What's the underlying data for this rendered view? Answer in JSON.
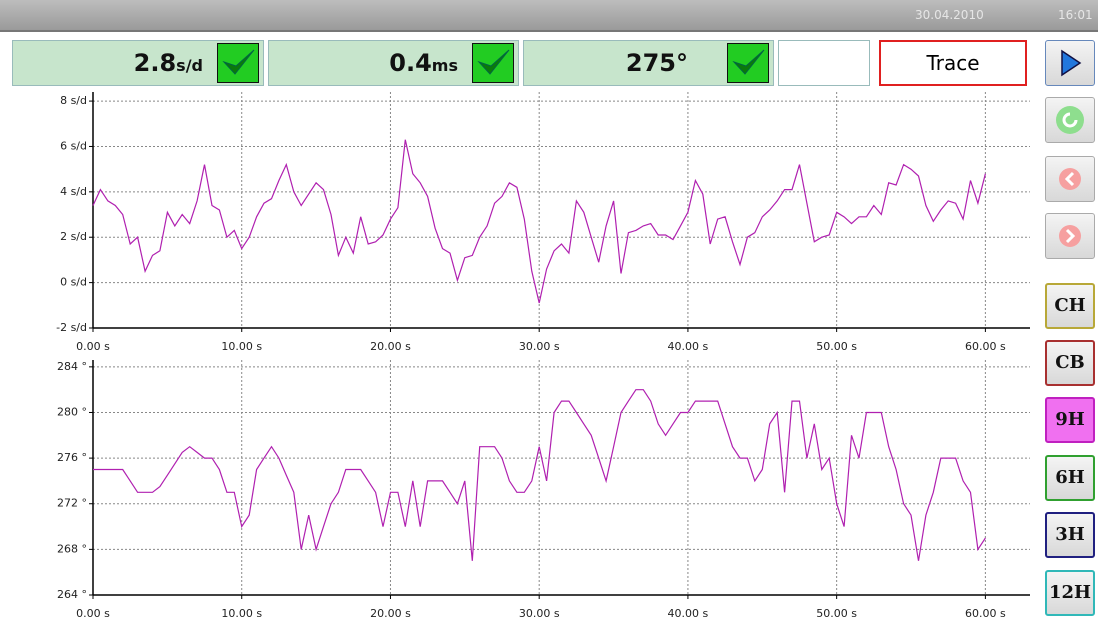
{
  "header": {
    "date": "30.04.2010",
    "time": "16:01"
  },
  "readouts": [
    {
      "value": "2.8",
      "unit": "s/d"
    },
    {
      "value": "0.4",
      "unit": "ms"
    },
    {
      "value": "275°"
    }
  ],
  "trace_button": "Trace",
  "side_buttons": [
    "CH",
    "CB",
    "9H",
    "6H",
    "3H",
    "12H"
  ],
  "chart_data": [
    {
      "type": "line",
      "color": "#b020b0",
      "grid": true,
      "xlim": [
        0,
        63
      ],
      "ylim": [
        -2,
        8.4
      ],
      "xticks": [
        {
          "value": 0,
          "label": "0.00 s"
        },
        {
          "value": 10,
          "label": "10.00 s"
        },
        {
          "value": 20,
          "label": "20.00 s"
        },
        {
          "value": 30,
          "label": "30.00 s"
        },
        {
          "value": 40,
          "label": "40.00 s"
        },
        {
          "value": 50,
          "label": "50.00 s"
        },
        {
          "value": 60,
          "label": "60.00 s"
        }
      ],
      "yticks": [
        {
          "value": -2,
          "label": "-2 s/d"
        },
        {
          "value": 0,
          "label": "0 s/d"
        },
        {
          "value": 2,
          "label": "2 s/d"
        },
        {
          "value": 4,
          "label": "4 s/d"
        },
        {
          "value": 6,
          "label": "6 s/d"
        },
        {
          "value": 8,
          "label": "8 s/d"
        }
      ],
      "x": [
        0,
        0.5,
        1,
        1.5,
        2,
        2.5,
        3,
        3.5,
        4,
        4.5,
        5,
        5.5,
        6,
        6.5,
        7,
        7.5,
        8,
        8.5,
        9,
        9.5,
        10,
        10.5,
        11,
        11.5,
        12,
        12.5,
        13,
        13.5,
        14,
        14.5,
        15,
        15.5,
        16,
        16.5,
        17,
        17.5,
        18,
        18.5,
        19,
        19.5,
        20,
        20.5,
        21,
        21.5,
        22,
        22.5,
        23,
        23.5,
        24,
        24.5,
        25,
        25.5,
        26,
        26.5,
        27,
        27.5,
        28,
        28.5,
        29,
        29.5,
        30,
        30.5,
        31,
        31.5,
        32,
        32.5,
        33,
        33.5,
        34,
        34.5,
        35,
        35.5,
        36,
        36.5,
        37,
        37.5,
        38,
        38.5,
        39,
        39.5,
        40,
        40.5,
        41,
        41.5,
        42,
        42.5,
        43,
        43.5,
        44,
        44.5,
        45,
        45.5,
        46,
        46.5,
        47,
        47.5,
        48,
        48.5,
        49,
        49.5,
        50,
        50.5,
        51,
        51.5,
        52,
        52.5,
        53,
        53.5,
        54,
        54.5,
        55,
        55.5,
        56,
        56.5,
        57,
        57.5,
        58,
        58.5,
        59,
        59.5,
        60
      ],
      "values": [
        3.4,
        4.1,
        3.6,
        3.4,
        3.0,
        1.7,
        2.0,
        0.5,
        1.2,
        1.4,
        3.1,
        2.5,
        3.0,
        2.6,
        3.6,
        5.2,
        3.4,
        3.2,
        2.0,
        2.3,
        1.5,
        2.0,
        2.9,
        3.5,
        3.7,
        4.5,
        5.2,
        4.0,
        3.4,
        3.9,
        4.4,
        4.1,
        3.0,
        1.2,
        2.0,
        1.3,
        2.9,
        1.7,
        1.8,
        2.1,
        2.8,
        3.3,
        6.3,
        4.8,
        4.4,
        3.8,
        2.4,
        1.5,
        1.3,
        0.1,
        1.1,
        1.2,
        2.0,
        2.5,
        3.5,
        3.8,
        4.4,
        4.2,
        2.8,
        0.5,
        -0.9,
        0.6,
        1.4,
        1.7,
        1.3,
        3.6,
        3.1,
        2.0,
        0.9,
        2.5,
        3.6,
        0.4,
        2.2,
        2.3,
        2.5,
        2.6,
        2.1,
        2.1,
        1.9,
        2.5,
        3.1,
        4.5,
        3.9,
        1.7,
        2.8,
        2.9,
        1.8,
        0.8,
        2.0,
        2.2,
        2.9,
        3.2,
        3.6,
        4.1,
        4.1,
        5.2,
        3.5,
        1.8,
        2.0,
        2.1,
        3.1,
        2.9,
        2.6,
        2.9,
        2.9,
        3.4,
        3.0,
        4.4,
        4.3,
        5.2,
        5.0,
        4.7,
        3.4,
        2.7,
        3.2,
        3.6,
        3.5,
        2.8,
        4.5,
        3.5,
        4.8
      ]
    },
    {
      "type": "line",
      "color": "#b020b0",
      "grid": true,
      "xlim": [
        0,
        63
      ],
      "ylim": [
        264,
        284.6
      ],
      "xticks": [
        {
          "value": 0,
          "label": "0.00 s"
        },
        {
          "value": 10,
          "label": "10.00 s"
        },
        {
          "value": 20,
          "label": "20.00 s"
        },
        {
          "value": 30,
          "label": "30.00 s"
        },
        {
          "value": 40,
          "label": "40.00 s"
        },
        {
          "value": 50,
          "label": "50.00 s"
        },
        {
          "value": 60,
          "label": "60.00 s"
        }
      ],
      "yticks": [
        {
          "value": 264,
          "label": "264 °"
        },
        {
          "value": 268,
          "label": "268 °"
        },
        {
          "value": 272,
          "label": "272 °"
        },
        {
          "value": 276,
          "label": "276 °"
        },
        {
          "value": 280,
          "label": "280 °"
        },
        {
          "value": 284,
          "label": "284 °"
        }
      ],
      "x": [
        0,
        0.5,
        1,
        1.5,
        2,
        2.5,
        3,
        3.5,
        4,
        4.5,
        5,
        5.5,
        6,
        6.5,
        7,
        7.5,
        8,
        8.5,
        9,
        9.5,
        10,
        10.5,
        11,
        11.5,
        12,
        12.5,
        13,
        13.5,
        14,
        14.5,
        15,
        15.5,
        16,
        16.5,
        17,
        17.5,
        18,
        18.5,
        19,
        19.5,
        20,
        20.5,
        21,
        21.5,
        22,
        22.5,
        23,
        23.5,
        24,
        24.5,
        25,
        25.5,
        26,
        26.5,
        27,
        27.5,
        28,
        28.5,
        29,
        29.5,
        30,
        30.5,
        31,
        31.5,
        32,
        32.5,
        33,
        33.5,
        34,
        34.5,
        35,
        35.5,
        36,
        36.5,
        37,
        37.5,
        38,
        38.5,
        39,
        39.5,
        40,
        40.5,
        41,
        41.5,
        42,
        42.5,
        43,
        43.5,
        44,
        44.5,
        45,
        45.5,
        46,
        46.5,
        47,
        47.5,
        48,
        48.5,
        49,
        49.5,
        50,
        50.5,
        51,
        51.5,
        52,
        52.5,
        53,
        53.5,
        54,
        54.5,
        55,
        55.5,
        56,
        56.5,
        57,
        57.5,
        58,
        58.5,
        59,
        59.5,
        60
      ],
      "values": [
        275,
        275,
        275,
        275,
        275,
        274,
        273,
        273,
        273,
        273.5,
        274.5,
        275.5,
        276.5,
        277,
        276.5,
        276,
        276,
        275,
        273,
        273,
        270,
        271,
        275,
        276,
        277,
        276,
        274.5,
        273,
        268,
        271,
        268,
        270,
        272,
        273,
        275,
        275,
        275,
        274,
        273,
        270,
        273,
        273,
        270,
        274,
        270,
        274,
        274,
        274,
        273,
        272,
        274,
        267,
        277,
        277,
        277,
        276,
        274,
        273,
        273,
        274,
        277,
        274,
        280,
        281,
        281,
        280,
        279,
        278,
        276,
        274,
        277,
        280,
        281,
        282,
        282,
        281,
        279,
        278,
        279,
        280,
        280,
        281,
        281,
        281,
        281,
        279,
        277,
        276,
        276,
        274,
        275,
        279,
        280,
        273,
        281,
        281,
        276,
        279,
        275,
        276,
        272,
        270,
        278,
        276,
        280,
        280,
        280,
        277,
        275,
        272,
        271,
        267,
        271,
        273,
        276,
        276,
        276,
        274,
        273,
        268,
        269
      ]
    }
  ]
}
